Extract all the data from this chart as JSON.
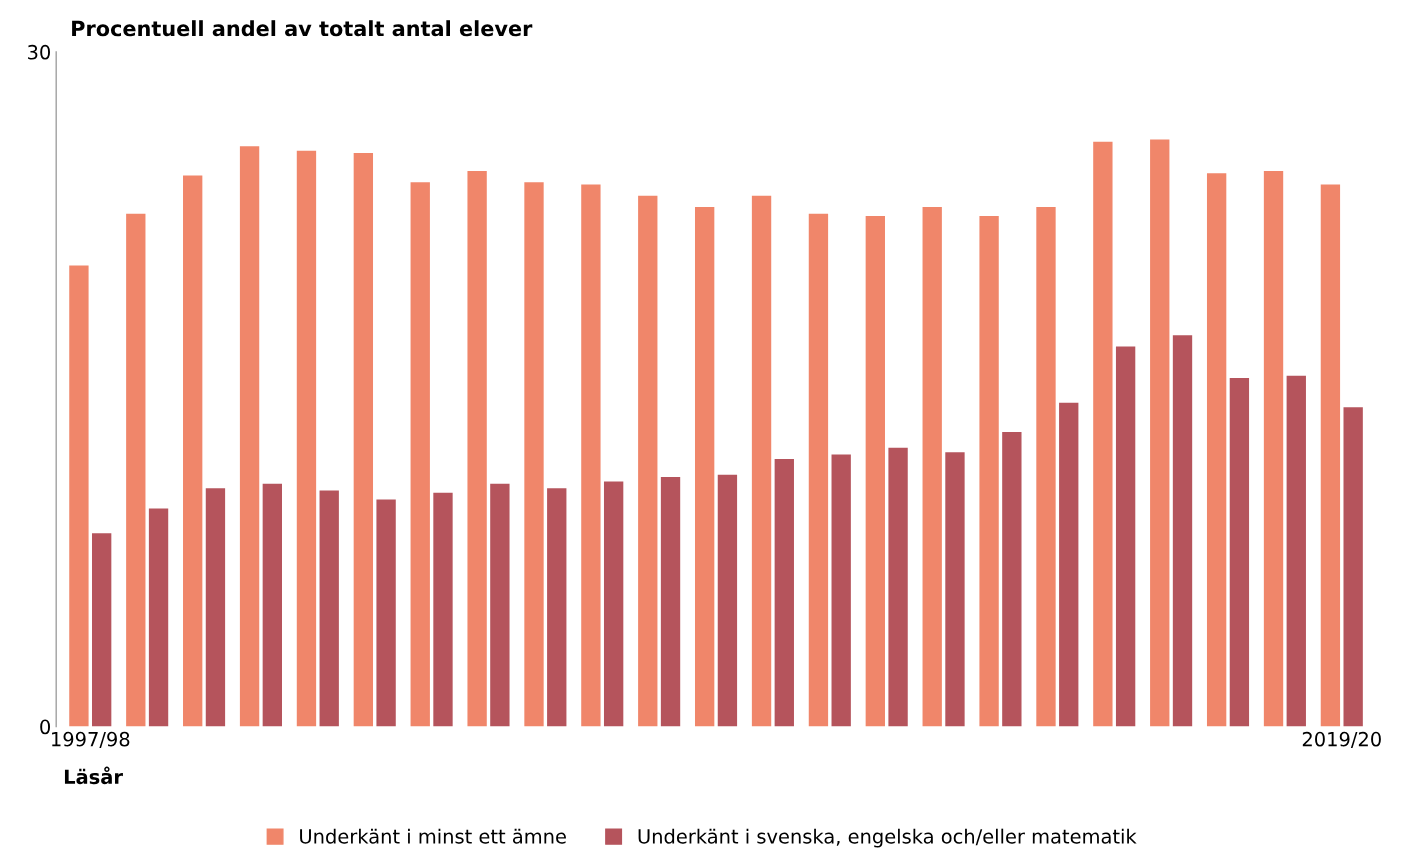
{
  "chart_data": {
    "type": "bar",
    "title": "Procentuell andel av totalt antal elever",
    "xlabel": "Läsår",
    "categories": [
      "1997/98",
      null,
      null,
      null,
      null,
      null,
      null,
      null,
      null,
      null,
      null,
      null,
      null,
      null,
      null,
      null,
      null,
      null,
      null,
      null,
      null,
      null,
      "2019/20"
    ],
    "series": [
      {
        "name": "Underkänt i minst ett ämne",
        "color": "#f0866a",
        "values": [
          20.5,
          22.8,
          24.5,
          25.8,
          25.6,
          25.5,
          24.2,
          24.7,
          24.2,
          24.1,
          23.6,
          23.1,
          23.6,
          22.8,
          22.7,
          23.1,
          22.7,
          23.1,
          26.0,
          26.1,
          24.6,
          24.7,
          24.1
        ]
      },
      {
        "name": "Underkänt i svenska, engelska och/eller matematik",
        "color": "#b5545c",
        "values": [
          8.6,
          9.7,
          10.6,
          10.8,
          10.5,
          10.1,
          10.4,
          10.8,
          10.6,
          10.9,
          11.1,
          11.2,
          11.9,
          12.1,
          12.4,
          12.2,
          13.1,
          14.4,
          16.9,
          17.4,
          15.5,
          15.6,
          14.2
        ]
      }
    ],
    "ylim": [
      0,
      30
    ],
    "yticks": [
      0,
      30
    ],
    "grid": false,
    "legend": "bottom"
  }
}
